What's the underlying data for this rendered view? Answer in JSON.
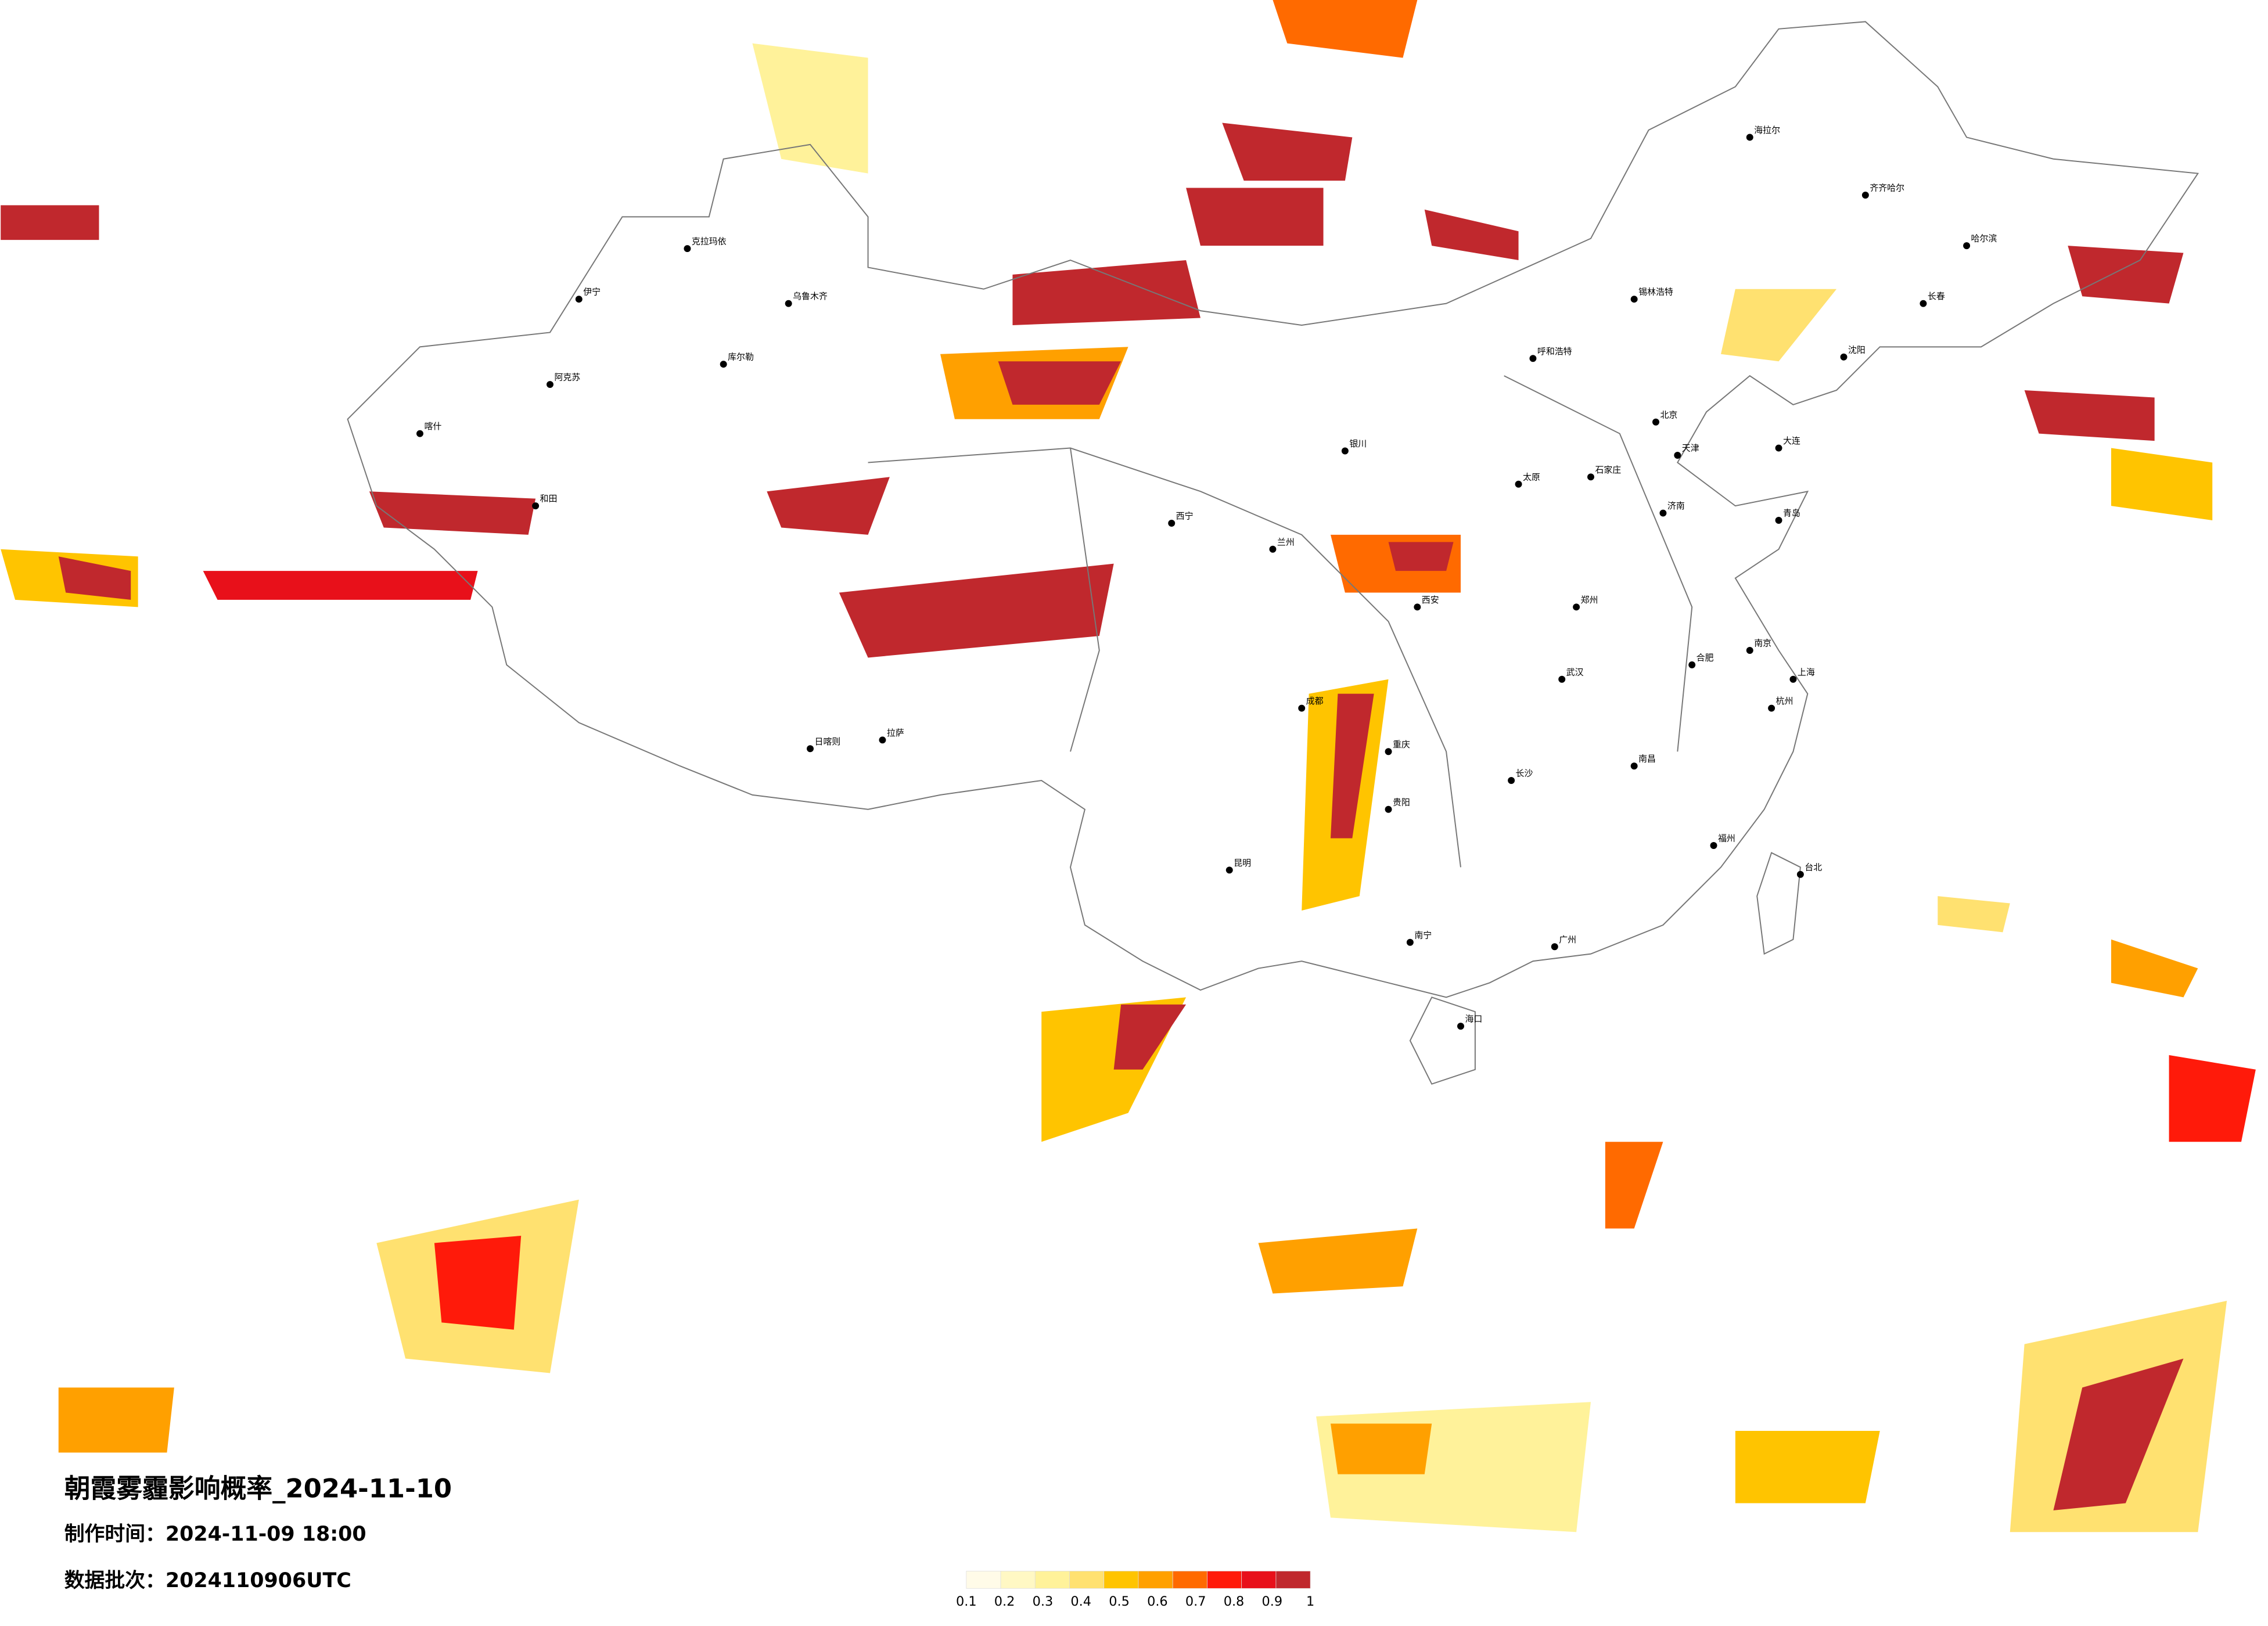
{
  "header": {
    "title": "朝霞雾霾影响概率_2024-11-10",
    "made_label": "制作时间：",
    "made_time": "2024-11-09 18:00",
    "batch_label": "数据批次：",
    "batch": "2024110906UTC"
  },
  "legend": {
    "colors": [
      "#fffbe8",
      "#fff8c4",
      "#fff29a",
      "#ffe170",
      "#ffc400",
      "#ffa000",
      "#ff6a00",
      "#ff1a0a",
      "#e8101a",
      "#c0282d"
    ],
    "ticks": [
      0.1,
      0.2,
      0.3,
      0.4,
      0.5,
      0.6,
      0.7,
      0.8,
      0.9,
      1
    ]
  },
  "cities": [
    {
      "name": "北京"
    },
    {
      "name": "天津"
    },
    {
      "name": "石家庄"
    },
    {
      "name": "太原"
    },
    {
      "name": "呼和浩特"
    },
    {
      "name": "济南"
    },
    {
      "name": "郑州"
    },
    {
      "name": "西安"
    },
    {
      "name": "兰州"
    },
    {
      "name": "西宁"
    },
    {
      "name": "银川"
    },
    {
      "name": "乌鲁木齐"
    },
    {
      "name": "克拉玛依"
    },
    {
      "name": "伊宁"
    },
    {
      "name": "库尔勒"
    },
    {
      "name": "阿克苏"
    },
    {
      "name": "喀什"
    },
    {
      "name": "和田"
    },
    {
      "name": "拉萨"
    },
    {
      "name": "日喀则"
    },
    {
      "name": "成都"
    },
    {
      "name": "重庆"
    },
    {
      "name": "贵阳"
    },
    {
      "name": "昆明"
    },
    {
      "name": "南宁"
    },
    {
      "name": "海口"
    },
    {
      "name": "广州"
    },
    {
      "name": "长沙"
    },
    {
      "name": "武汉"
    },
    {
      "name": "南昌"
    },
    {
      "name": "福州"
    },
    {
      "name": "台北"
    },
    {
      "name": "杭州"
    },
    {
      "name": "上海"
    },
    {
      "name": "南京"
    },
    {
      "name": "合肥"
    },
    {
      "name": "沈阳"
    },
    {
      "name": "长春"
    },
    {
      "name": "哈尔滨"
    },
    {
      "name": "齐齐哈尔"
    },
    {
      "name": "海拉尔"
    },
    {
      "name": "锡林浩特"
    },
    {
      "name": "大连"
    },
    {
      "name": "青岛"
    }
  ]
}
